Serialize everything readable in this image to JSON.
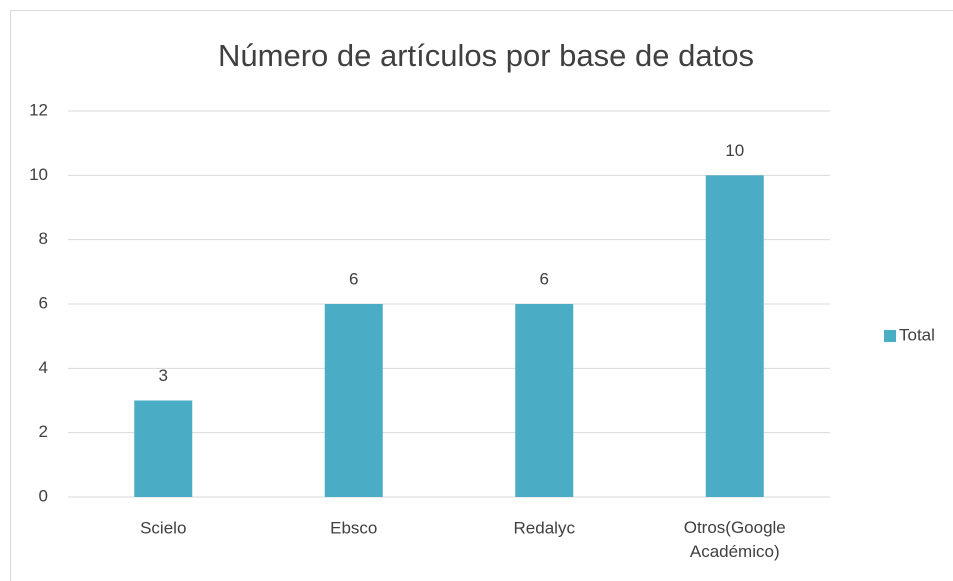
{
  "chart_data": {
    "type": "bar",
    "title": "Número de artículos por base de datos",
    "categories": [
      "Scielo",
      "Ebsco",
      "Redalyc",
      "Otros(Google Académico)"
    ],
    "series": [
      {
        "name": "Total",
        "color": "#4bacc6",
        "values": [
          3,
          6,
          6,
          10
        ]
      }
    ],
    "ylim": [
      0,
      12
    ],
    "yticks": [
      0,
      2,
      4,
      6,
      8,
      10,
      12
    ],
    "grid": true,
    "legend": "right"
  }
}
